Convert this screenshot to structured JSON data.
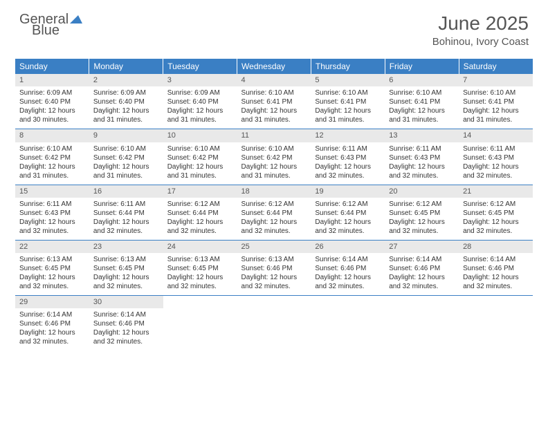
{
  "brand": {
    "name_part1": "General",
    "name_part2": "Blue"
  },
  "title": "June 2025",
  "location": "Bohinou, Ivory Coast",
  "colors": {
    "header_bg": "#3a7fc4",
    "header_fg": "#ffffff",
    "daynum_bg": "#e9e9e9",
    "text": "#333333",
    "brand_gray": "#555555",
    "brand_blue": "#3a7fc4",
    "row_divider": "#3a7fc4",
    "page_bg": "#ffffff"
  },
  "typography": {
    "title_fontsize": 28,
    "location_fontsize": 15,
    "weekday_fontsize": 12,
    "daynum_fontsize": 11,
    "body_fontsize": 10
  },
  "weekdays": [
    "Sunday",
    "Monday",
    "Tuesday",
    "Wednesday",
    "Thursday",
    "Friday",
    "Saturday"
  ],
  "weeks": [
    [
      {
        "day": 1,
        "sunrise": "6:09 AM",
        "sunset": "6:40 PM",
        "daylight": "12 hours and 30 minutes."
      },
      {
        "day": 2,
        "sunrise": "6:09 AM",
        "sunset": "6:40 PM",
        "daylight": "12 hours and 31 minutes."
      },
      {
        "day": 3,
        "sunrise": "6:09 AM",
        "sunset": "6:40 PM",
        "daylight": "12 hours and 31 minutes."
      },
      {
        "day": 4,
        "sunrise": "6:10 AM",
        "sunset": "6:41 PM",
        "daylight": "12 hours and 31 minutes."
      },
      {
        "day": 5,
        "sunrise": "6:10 AM",
        "sunset": "6:41 PM",
        "daylight": "12 hours and 31 minutes."
      },
      {
        "day": 6,
        "sunrise": "6:10 AM",
        "sunset": "6:41 PM",
        "daylight": "12 hours and 31 minutes."
      },
      {
        "day": 7,
        "sunrise": "6:10 AM",
        "sunset": "6:41 PM",
        "daylight": "12 hours and 31 minutes."
      }
    ],
    [
      {
        "day": 8,
        "sunrise": "6:10 AM",
        "sunset": "6:42 PM",
        "daylight": "12 hours and 31 minutes."
      },
      {
        "day": 9,
        "sunrise": "6:10 AM",
        "sunset": "6:42 PM",
        "daylight": "12 hours and 31 minutes."
      },
      {
        "day": 10,
        "sunrise": "6:10 AM",
        "sunset": "6:42 PM",
        "daylight": "12 hours and 31 minutes."
      },
      {
        "day": 11,
        "sunrise": "6:10 AM",
        "sunset": "6:42 PM",
        "daylight": "12 hours and 31 minutes."
      },
      {
        "day": 12,
        "sunrise": "6:11 AM",
        "sunset": "6:43 PM",
        "daylight": "12 hours and 32 minutes."
      },
      {
        "day": 13,
        "sunrise": "6:11 AM",
        "sunset": "6:43 PM",
        "daylight": "12 hours and 32 minutes."
      },
      {
        "day": 14,
        "sunrise": "6:11 AM",
        "sunset": "6:43 PM",
        "daylight": "12 hours and 32 minutes."
      }
    ],
    [
      {
        "day": 15,
        "sunrise": "6:11 AM",
        "sunset": "6:43 PM",
        "daylight": "12 hours and 32 minutes."
      },
      {
        "day": 16,
        "sunrise": "6:11 AM",
        "sunset": "6:44 PM",
        "daylight": "12 hours and 32 minutes."
      },
      {
        "day": 17,
        "sunrise": "6:12 AM",
        "sunset": "6:44 PM",
        "daylight": "12 hours and 32 minutes."
      },
      {
        "day": 18,
        "sunrise": "6:12 AM",
        "sunset": "6:44 PM",
        "daylight": "12 hours and 32 minutes."
      },
      {
        "day": 19,
        "sunrise": "6:12 AM",
        "sunset": "6:44 PM",
        "daylight": "12 hours and 32 minutes."
      },
      {
        "day": 20,
        "sunrise": "6:12 AM",
        "sunset": "6:45 PM",
        "daylight": "12 hours and 32 minutes."
      },
      {
        "day": 21,
        "sunrise": "6:12 AM",
        "sunset": "6:45 PM",
        "daylight": "12 hours and 32 minutes."
      }
    ],
    [
      {
        "day": 22,
        "sunrise": "6:13 AM",
        "sunset": "6:45 PM",
        "daylight": "12 hours and 32 minutes."
      },
      {
        "day": 23,
        "sunrise": "6:13 AM",
        "sunset": "6:45 PM",
        "daylight": "12 hours and 32 minutes."
      },
      {
        "day": 24,
        "sunrise": "6:13 AM",
        "sunset": "6:45 PM",
        "daylight": "12 hours and 32 minutes."
      },
      {
        "day": 25,
        "sunrise": "6:13 AM",
        "sunset": "6:46 PM",
        "daylight": "12 hours and 32 minutes."
      },
      {
        "day": 26,
        "sunrise": "6:14 AM",
        "sunset": "6:46 PM",
        "daylight": "12 hours and 32 minutes."
      },
      {
        "day": 27,
        "sunrise": "6:14 AM",
        "sunset": "6:46 PM",
        "daylight": "12 hours and 32 minutes."
      },
      {
        "day": 28,
        "sunrise": "6:14 AM",
        "sunset": "6:46 PM",
        "daylight": "12 hours and 32 minutes."
      }
    ],
    [
      {
        "day": 29,
        "sunrise": "6:14 AM",
        "sunset": "6:46 PM",
        "daylight": "12 hours and 32 minutes."
      },
      {
        "day": 30,
        "sunrise": "6:14 AM",
        "sunset": "6:46 PM",
        "daylight": "12 hours and 32 minutes."
      },
      null,
      null,
      null,
      null,
      null
    ]
  ],
  "labels": {
    "sunrise": "Sunrise:",
    "sunset": "Sunset:",
    "daylight": "Daylight:"
  }
}
